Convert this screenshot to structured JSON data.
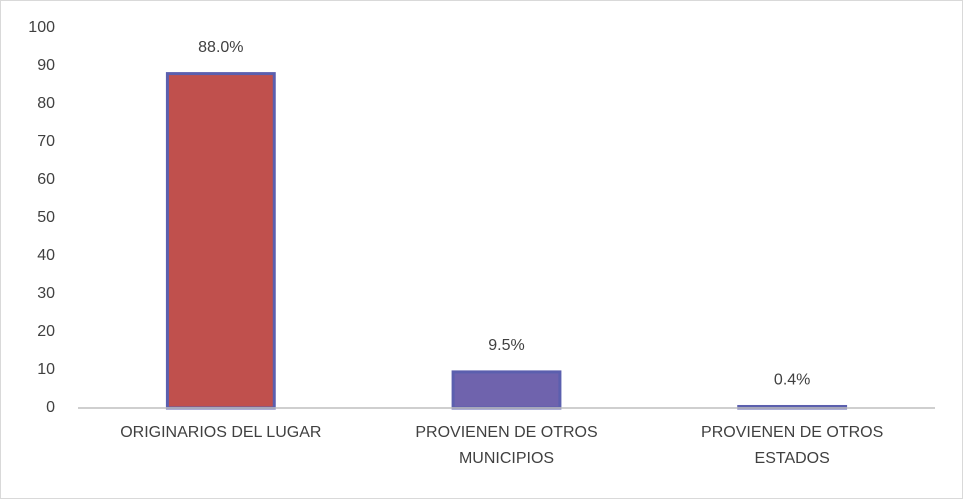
{
  "chart_data": {
    "type": "bar",
    "categories": [
      "ORIGINARIOS DEL LUGAR",
      "PROVIENEN DE OTROS MUNICIPIOS",
      "PROVIENEN DE OTROS ESTADOS"
    ],
    "values": [
      88,
      9.5,
      0.4
    ],
    "value_labels": [
      "88.0%",
      "9.5%",
      "0.4%"
    ],
    "colors": [
      "#c0504d",
      "#6f63ad",
      "#6f63ad"
    ],
    "ylim": [
      0,
      100
    ],
    "yticks": [
      0,
      10,
      20,
      30,
      40,
      50,
      60,
      70,
      80,
      90,
      100
    ],
    "grid": false
  }
}
